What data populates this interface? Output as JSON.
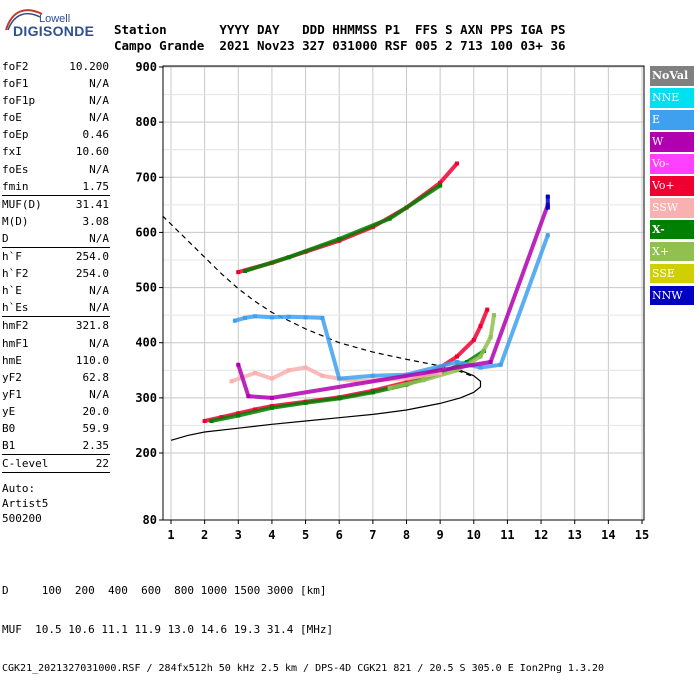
{
  "logo": {
    "top": "Lowell",
    "main": "DIGISONDE"
  },
  "header": {
    "labels": "Station       YYYY DAY   DDD HHMMSS P1  FFS S AXN PPS IGA PS",
    "values": "Campo Grande  2021 Nov23 327 031000 RSF 005 2 713 100 03+ 36"
  },
  "params": [
    {
      "label": "foF2",
      "value": "10.200"
    },
    {
      "label": "foF1",
      "value": "N/A"
    },
    {
      "label": "foF1p",
      "value": "N/A"
    },
    {
      "label": "foE",
      "value": "N/A"
    },
    {
      "label": "foEp",
      "value": "0.46"
    },
    {
      "label": "fxI",
      "value": "10.60"
    },
    {
      "label": "foEs",
      "value": "N/A"
    },
    {
      "label": "fmin",
      "value": "1.75"
    },
    {
      "label": "MUF(D)",
      "value": "31.41",
      "sep": true
    },
    {
      "label": "M(D)",
      "value": "3.08"
    },
    {
      "label": "D",
      "value": "N/A"
    },
    {
      "label": "h`F",
      "value": "254.0",
      "sep": true
    },
    {
      "label": "h`F2",
      "value": "254.0"
    },
    {
      "label": "h`E",
      "value": "N/A"
    },
    {
      "label": "h`Es",
      "value": "N/A"
    },
    {
      "label": "hmF2",
      "value": "321.8",
      "sep": true
    },
    {
      "label": "hmF1",
      "value": "N/A"
    },
    {
      "label": "hmE",
      "value": "110.0"
    },
    {
      "label": "yF2",
      "value": "62.8"
    },
    {
      "label": "yF1",
      "value": "N/A"
    },
    {
      "label": "yE",
      "value": "20.0"
    },
    {
      "label": "B0",
      "value": "59.9"
    },
    {
      "label": "B1",
      "value": "2.35"
    },
    {
      "label": "C-level",
      "value": "22",
      "sep": true
    }
  ],
  "auto": [
    "Auto:",
    "Artist5",
    "500200"
  ],
  "legend": [
    {
      "name": "NoVal",
      "color": "#808080",
      "text": "#ffffff",
      "bold": true
    },
    {
      "name": "NNE",
      "color": "#00e0f0",
      "text": "#ffffff"
    },
    {
      "name": "E",
      "color": "#40a0f0",
      "text": "#ffffff"
    },
    {
      "name": "W",
      "color": "#b000b0",
      "text": "#ffffff"
    },
    {
      "name": "Vo-",
      "color": "#ff40ff",
      "text": "#ffffff"
    },
    {
      "name": "Vo+",
      "color": "#f00030",
      "text": "#ffffff"
    },
    {
      "name": "SSW",
      "color": "#f8b0b0",
      "text": "#ffffff"
    },
    {
      "name": "X-",
      "color": "#008000",
      "text": "#ffffff",
      "bold": true
    },
    {
      "name": "X+",
      "color": "#90c050",
      "text": "#ffffff"
    },
    {
      "name": "SSE",
      "color": "#d0d000",
      "text": "#ffffff"
    },
    {
      "name": "NNW",
      "color": "#0000c0",
      "text": "#ffffff"
    }
  ],
  "footer": {
    "d_row": "D     100  200  400  600  800 1000 1500 3000 [km]",
    "muf_row": "MUF  10.5 10.6 11.1 11.9 13.0 14.6 19.3 31.4 [MHz]",
    "file_row": "CGK21_2021327031000.RSF / 284fx512h 50 kHz 2.5 km / DPS-4D CGK21 821 / 20.5 S 305.0 E Ion2Png 1.3.20"
  },
  "chart_data": {
    "type": "scatter",
    "title": "",
    "xlabel": "",
    "ylabel": "",
    "xlim": [
      0.75,
      15
    ],
    "ylim": [
      80,
      900
    ],
    "xticks": [
      1,
      2,
      3,
      4,
      5,
      6,
      7,
      8,
      9,
      10,
      11,
      12,
      13,
      14,
      15
    ],
    "yticks": [
      80,
      200,
      300,
      400,
      500,
      600,
      700,
      800,
      900
    ],
    "grid": true,
    "scale_note": "y grid lines at 100 km steps between 200 and 900",
    "series": [
      {
        "name": "Vo+",
        "color": "#f00030",
        "points": [
          [
            2.0,
            258
          ],
          [
            2.5,
            265
          ],
          [
            3.0,
            272
          ],
          [
            3.5,
            279
          ],
          [
            4.0,
            285
          ],
          [
            5.0,
            293
          ],
          [
            6.0,
            301
          ],
          [
            7.0,
            313
          ],
          [
            8.0,
            328
          ],
          [
            8.5,
            340
          ],
          [
            9.0,
            355
          ],
          [
            9.5,
            375
          ],
          [
            10.0,
            405
          ],
          [
            10.2,
            430
          ],
          [
            10.4,
            460
          ]
        ]
      },
      {
        "name": "X-",
        "color": "#008000",
        "points": [
          [
            2.2,
            258
          ],
          [
            3.0,
            268
          ],
          [
            4.0,
            282
          ],
          [
            5.0,
            291
          ],
          [
            6.0,
            299
          ],
          [
            7.0,
            310
          ],
          [
            8.0,
            324
          ],
          [
            9.0,
            345
          ],
          [
            9.8,
            365
          ],
          [
            10.3,
            385
          ]
        ]
      },
      {
        "name": "X+",
        "color": "#90c050",
        "points": [
          [
            7.5,
            318
          ],
          [
            8.5,
            332
          ],
          [
            9.5,
            350
          ],
          [
            10.2,
            375
          ],
          [
            10.5,
            410
          ],
          [
            10.6,
            450
          ]
        ]
      },
      {
        "name": "SSW",
        "color": "#f8b0b0",
        "points": [
          [
            2.8,
            330
          ],
          [
            3.5,
            345
          ],
          [
            4.0,
            335
          ],
          [
            4.5,
            350
          ],
          [
            5.0,
            355
          ],
          [
            5.5,
            340
          ],
          [
            6.0,
            335
          ],
          [
            6.5,
            330
          ],
          [
            8.0,
            335
          ],
          [
            9.0,
            345
          ]
        ]
      },
      {
        "name": "E",
        "color": "#40a0f0",
        "points": [
          [
            2.9,
            440
          ],
          [
            3.2,
            445
          ],
          [
            3.5,
            448
          ],
          [
            4.0,
            446
          ],
          [
            4.5,
            447
          ],
          [
            5.0,
            446
          ],
          [
            5.5,
            445
          ],
          [
            6.0,
            335
          ],
          [
            7.0,
            340
          ],
          [
            8.0,
            342
          ],
          [
            9.5,
            365
          ],
          [
            10.2,
            355
          ],
          [
            10.8,
            360
          ],
          [
            12.2,
            595
          ]
        ]
      },
      {
        "name": "W",
        "color": "#b000b0",
        "points": [
          [
            3.0,
            360
          ],
          [
            3.3,
            303
          ],
          [
            4.0,
            300
          ],
          [
            10.5,
            365
          ],
          [
            12.2,
            650
          ]
        ]
      },
      {
        "name": "NNW",
        "color": "#0000c0",
        "points": [
          [
            12.2,
            645
          ],
          [
            12.2,
            665
          ]
        ]
      },
      {
        "name": "Vo+ (2F)",
        "color": "#f00030",
        "points": [
          [
            3.0,
            528
          ],
          [
            4.0,
            545
          ],
          [
            5.0,
            565
          ],
          [
            6.0,
            585
          ],
          [
            7.0,
            610
          ],
          [
            8.0,
            645
          ],
          [
            9.0,
            690
          ],
          [
            9.5,
            725
          ]
        ]
      },
      {
        "name": "X- (2F)",
        "color": "#008000",
        "points": [
          [
            3.2,
            530
          ],
          [
            4.5,
            555
          ],
          [
            6.0,
            588
          ],
          [
            7.5,
            625
          ],
          [
            9.0,
            685
          ]
        ]
      }
    ],
    "profile_solid": [
      [
        1.0,
        223
      ],
      [
        1.5,
        232
      ],
      [
        2.0,
        238
      ],
      [
        3.0,
        245
      ],
      [
        4.0,
        252
      ],
      [
        5.0,
        258
      ],
      [
        6.0,
        264
      ],
      [
        7.0,
        270
      ],
      [
        8.0,
        278
      ],
      [
        9.0,
        290
      ],
      [
        9.6,
        300
      ],
      [
        10.0,
        310
      ],
      [
        10.2,
        320
      ],
      [
        10.2,
        330
      ],
      [
        10.0,
        340
      ],
      [
        9.6,
        350
      ]
    ],
    "profile_dashed": [
      [
        0.75,
        630
      ],
      [
        1.0,
        615
      ],
      [
        1.5,
        585
      ],
      [
        2.0,
        555
      ],
      [
        2.5,
        525
      ],
      [
        3.0,
        498
      ],
      [
        3.5,
        475
      ],
      [
        4.0,
        455
      ],
      [
        5.0,
        425
      ],
      [
        6.0,
        400
      ],
      [
        7.0,
        383
      ],
      [
        8.0,
        370
      ],
      [
        9.0,
        358
      ],
      [
        9.5,
        350
      ],
      [
        10.0,
        338
      ]
    ]
  }
}
